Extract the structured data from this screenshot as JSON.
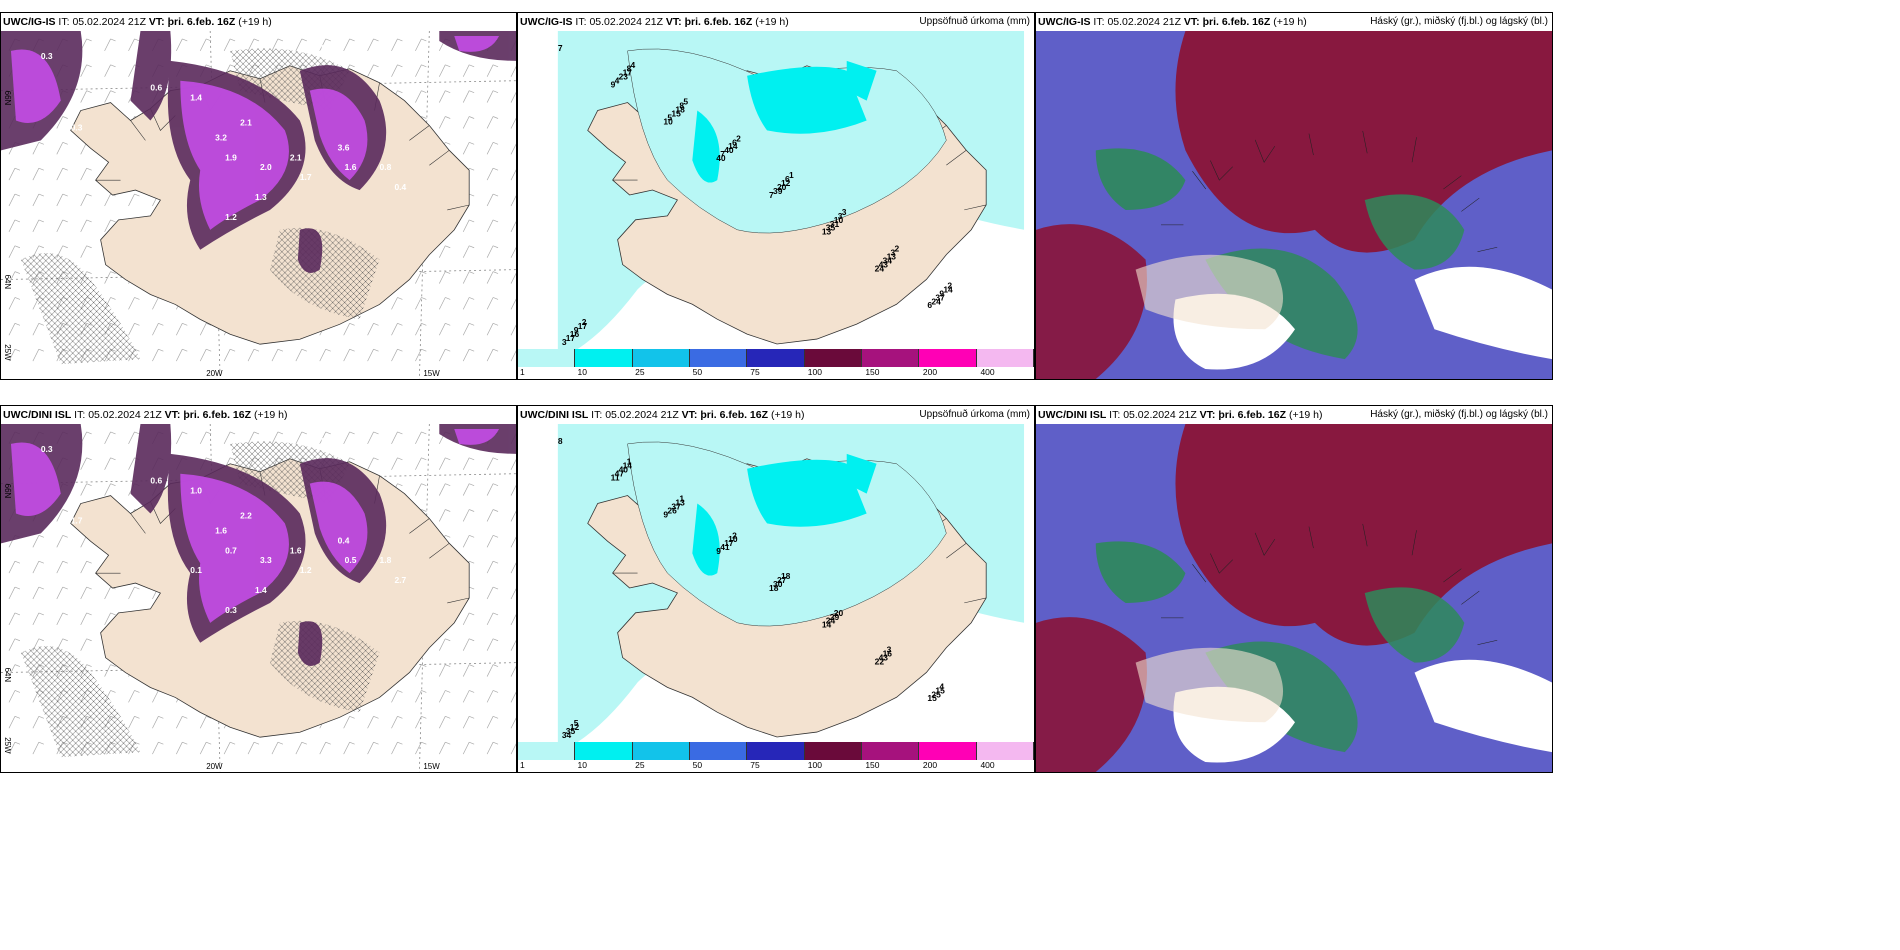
{
  "panels": [
    {
      "model": "UWC/IG-IS",
      "it": "05.02.2024 21Z",
      "vt": "þri. 6.feb. 16Z",
      "lead": "(+19 h)",
      "right": ""
    },
    {
      "model": "UWC/IG-IS",
      "it": "05.02.2024 21Z",
      "vt": "þri. 6.feb. 16Z",
      "lead": "(+19 h)",
      "right": "Uppsöfnuð úrkoma (mm)"
    },
    {
      "model": "UWC/IG-IS",
      "it": "05.02.2024 21Z",
      "vt": "þri. 6.feb. 16Z",
      "lead": "(+19 h)",
      "right": "Háský (gr.), miðský (fj.bl.) og lágský (bl.)"
    },
    {
      "model": "UWC/DINI ISL",
      "it": "05.02.2024 21Z",
      "vt": "þri. 6.feb. 16Z",
      "lead": "(+19 h)",
      "right": ""
    },
    {
      "model": "UWC/DINI ISL",
      "it": "05.02.2024 21Z",
      "vt": "þri. 6.feb. 16Z",
      "lead": "(+19 h)",
      "right": "Uppsöfnuð úrkoma (mm)"
    },
    {
      "model": "UWC/DINI ISL",
      "it": "05.02.2024 21Z",
      "vt": "þri. 6.feb. 16Z",
      "lead": "(+19 h)",
      "right": "Háský (gr.), miðský (fj.bl.) og lágský (bl.)"
    }
  ],
  "labels": {
    "it": "IT:",
    "vt": "VT:"
  },
  "axis_ticks": {
    "lon_a": "20W",
    "lon_b": "15W",
    "lat_top": "66N",
    "lat_mid": "64N",
    "lat_bot": "25W"
  },
  "colorbar": {
    "labels": [
      "1",
      "10",
      "25",
      "50",
      "75",
      "100",
      "150",
      "200",
      "400"
    ],
    "colors": [
      "#b8f7f5",
      "#00f0f0",
      "#12c3ea",
      "#3a6be3",
      "#2626b8",
      "#6a0a3a",
      "#a6127d",
      "#ff00b5",
      "#f4b8f0"
    ]
  },
  "colors": {
    "land": "#f3e2d0",
    "snow_magenta": "#c04ce0",
    "snow_dark": "#5a2a5c",
    "precip_light": "#b8f7f5",
    "precip_mid": "#00f0f0",
    "cloud_high": "#8a1438",
    "cloud_mid": "#5f5fc8",
    "cloud_low": "#2e8a5a"
  },
  "precip_numbers_top": [
    "7",
    "9",
    "10",
    "40",
    "7",
    "13",
    "24",
    "6",
    "3",
    "4",
    "5",
    "7",
    "39",
    "35",
    "43",
    "24",
    "17",
    "23",
    "15",
    "40",
    "20",
    "31",
    "34",
    "37",
    "16",
    "17",
    "18",
    "14",
    "12",
    "10",
    "13",
    "9",
    "9",
    "8",
    "8",
    "6",
    "6",
    "3",
    "3",
    "14",
    "17",
    "4",
    "5",
    "2",
    "1",
    "3",
    "2",
    "2",
    "2"
  ],
  "precip_numbers_bottom": [
    "8",
    "11",
    "9",
    "9",
    "18",
    "14",
    "22",
    "15",
    "34",
    "47",
    "26",
    "41",
    "30",
    "24",
    "43",
    "25",
    "35",
    "40",
    "37",
    "17",
    "27",
    "29",
    "16",
    "15",
    "12",
    "14",
    "13",
    "10",
    "18",
    "20",
    "3",
    "4",
    "5",
    "1",
    "1",
    "2"
  ],
  "snow_numbers_top": [
    "0.3",
    "0.6",
    "1.9",
    "1.4",
    "2.1",
    "3.2",
    "1.9",
    "2.0",
    "2.1",
    "1.7",
    "3.6",
    "1.6",
    "0.8",
    "0.4",
    "0.3",
    "1.3",
    "1.2"
  ],
  "snow_numbers_bottom": [
    "0.3",
    "0.6",
    "1.5",
    "1.0",
    "2.2",
    "1.6",
    "0.7",
    "3.3",
    "1.6",
    "1.2",
    "0.4",
    "0.5",
    "1.8",
    "2.7",
    "1.7",
    "1.4",
    "0.3",
    "0.1"
  ]
}
